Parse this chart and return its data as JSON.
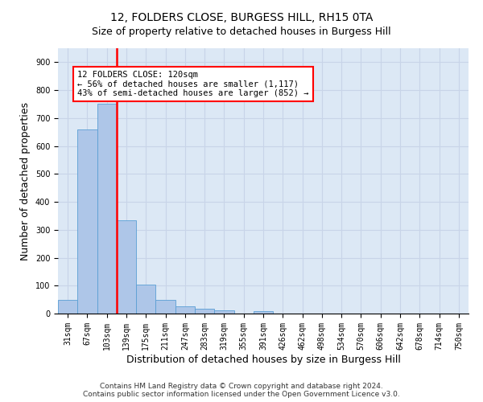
{
  "title": "12, FOLDERS CLOSE, BURGESS HILL, RH15 0TA",
  "subtitle": "Size of property relative to detached houses in Burgess Hill",
  "xlabel": "Distribution of detached houses by size in Burgess Hill",
  "ylabel": "Number of detached properties",
  "footer_line1": "Contains HM Land Registry data © Crown copyright and database right 2024.",
  "footer_line2": "Contains public sector information licensed under the Open Government Licence v3.0.",
  "bar_labels": [
    "31sqm",
    "67sqm",
    "103sqm",
    "139sqm",
    "175sqm",
    "211sqm",
    "247sqm",
    "283sqm",
    "319sqm",
    "355sqm",
    "391sqm",
    "426sqm",
    "462sqm",
    "498sqm",
    "534sqm",
    "570sqm",
    "606sqm",
    "642sqm",
    "678sqm",
    "714sqm",
    "750sqm"
  ],
  "bar_values": [
    50,
    660,
    750,
    335,
    105,
    50,
    25,
    17,
    12,
    0,
    8,
    0,
    0,
    0,
    0,
    0,
    0,
    0,
    0,
    0,
    0
  ],
  "bar_color": "#aec6e8",
  "bar_edge_color": "#5a9fd4",
  "grid_color": "#c8d4e8",
  "background_color": "#dce8f5",
  "vline_color": "red",
  "vline_x_data": 2.5,
  "annotation_text": "12 FOLDERS CLOSE: 120sqm\n← 56% of detached houses are smaller (1,117)\n43% of semi-detached houses are larger (852) →",
  "annotation_box_color": "white",
  "annotation_box_edge": "red",
  "ylim": [
    0,
    950
  ],
  "yticks": [
    0,
    100,
    200,
    300,
    400,
    500,
    600,
    700,
    800,
    900
  ],
  "title_fontsize": 10,
  "subtitle_fontsize": 9,
  "ylabel_fontsize": 9,
  "xlabel_fontsize": 9,
  "tick_fontsize": 7,
  "annotation_fontsize": 7.5,
  "footer_fontsize": 6.5
}
